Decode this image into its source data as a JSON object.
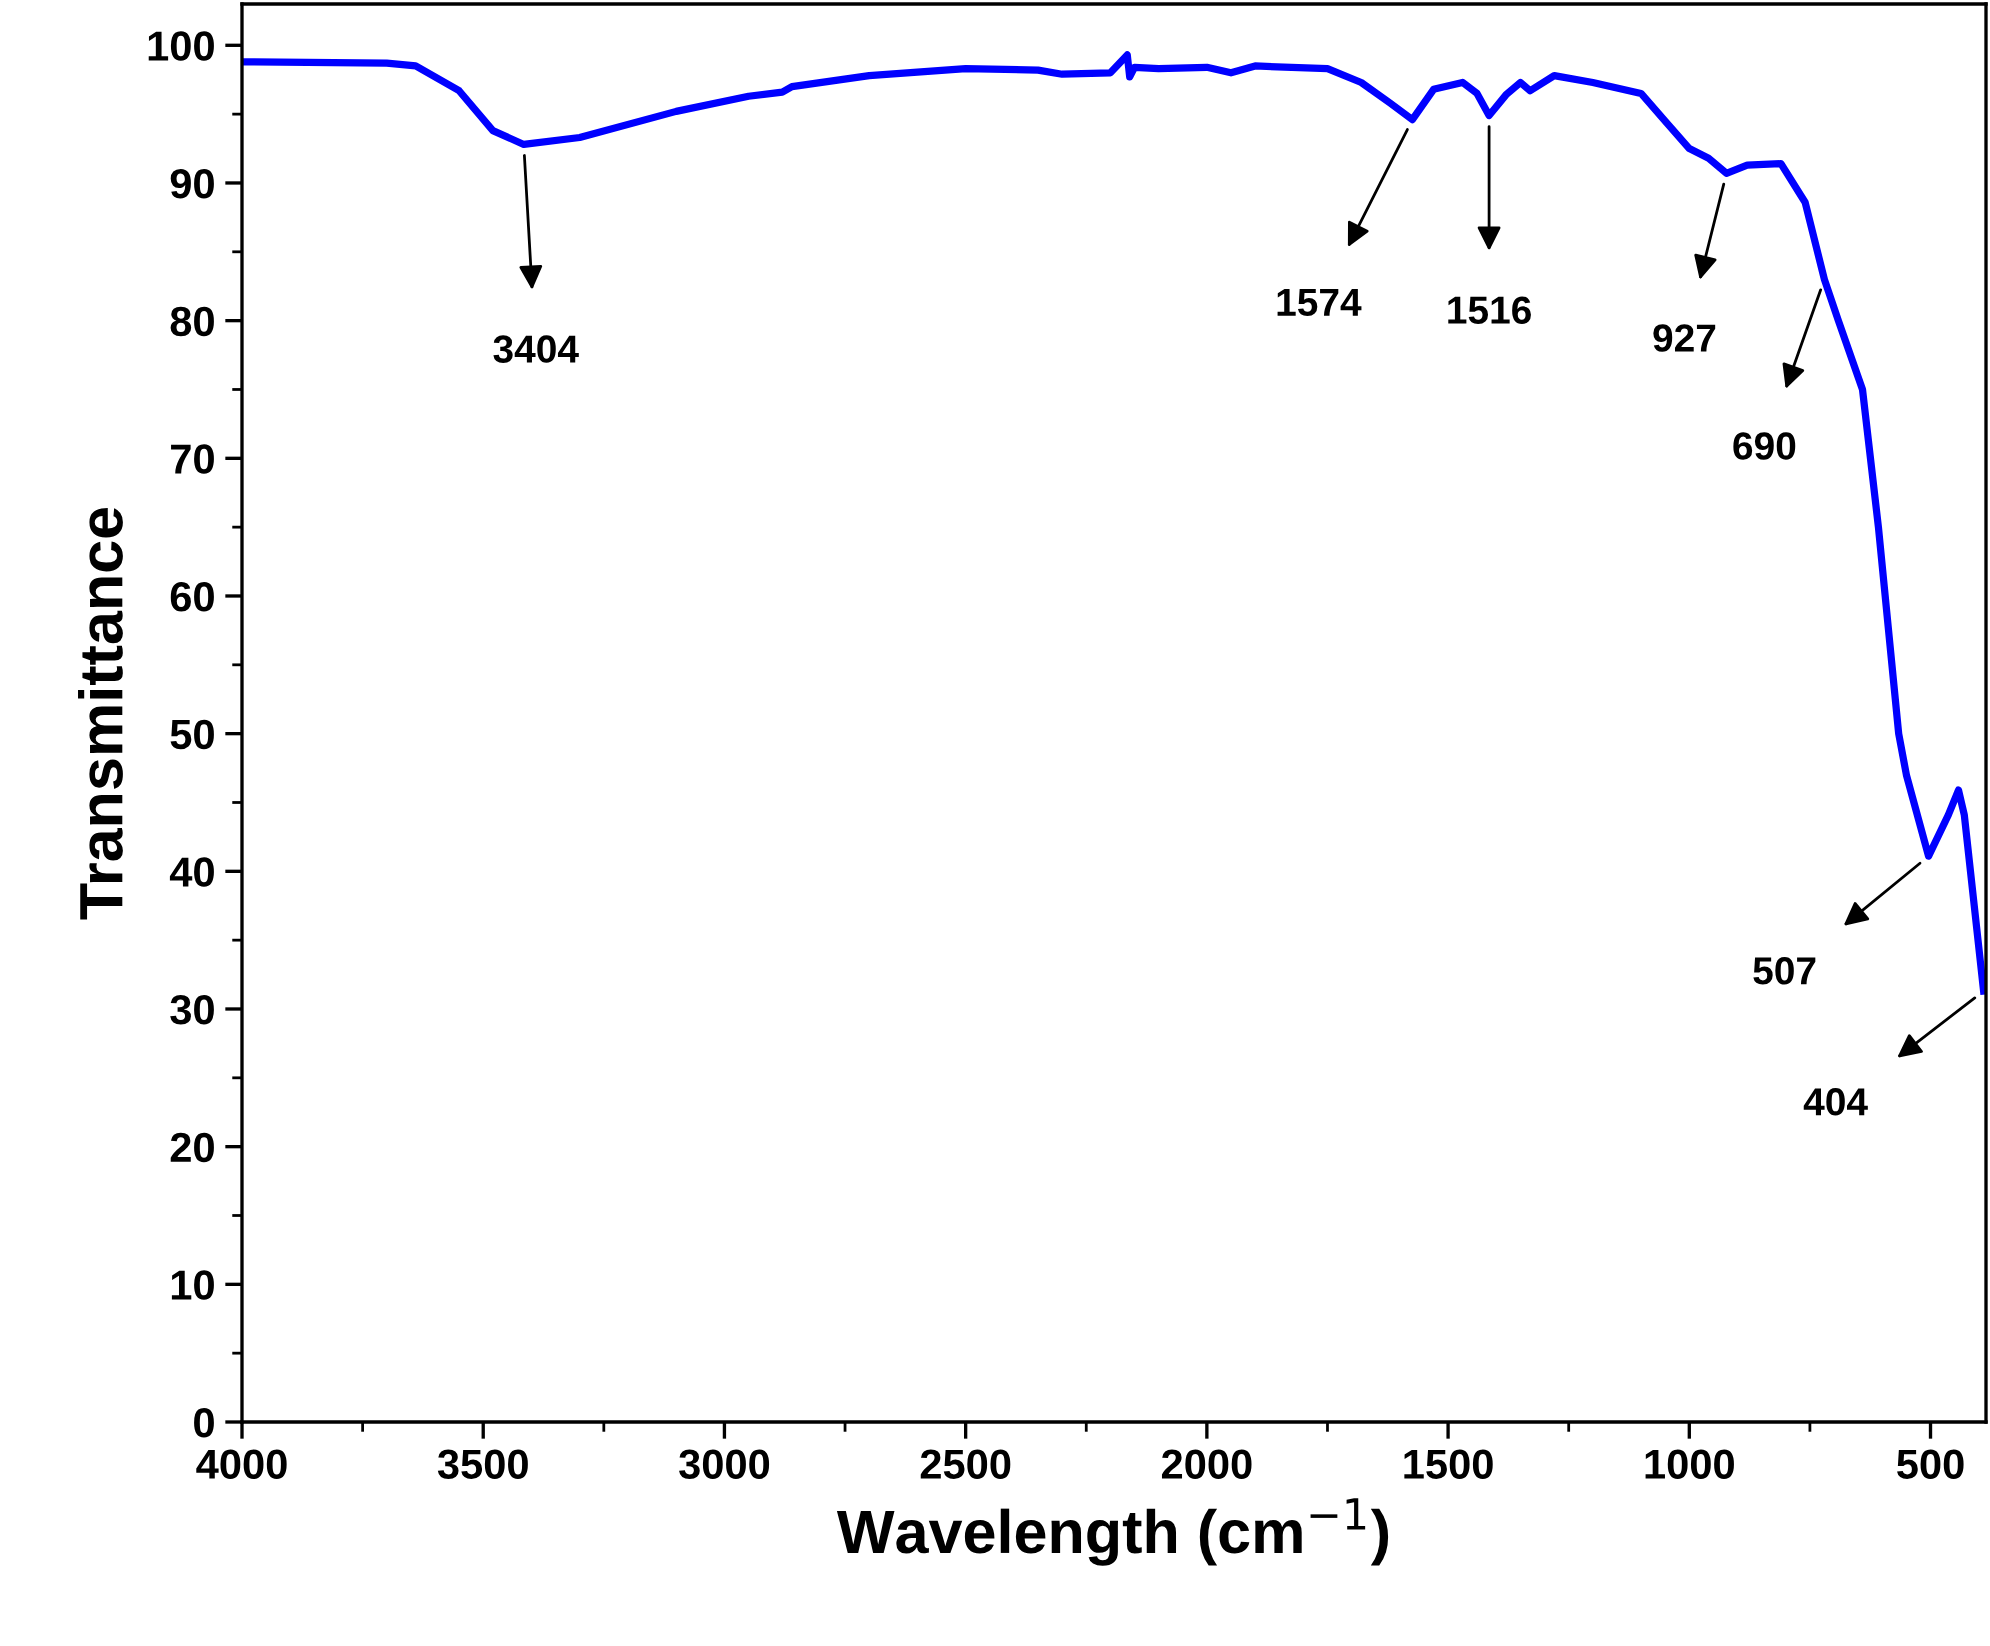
{
  "chart_data": {
    "type": "line",
    "xlabel": "Wavelength (cm$^{−1}$)",
    "ylabel": "Transmittance",
    "x": [
      4000,
      3700,
      3640,
      3550,
      3480,
      3416,
      3300,
      3100,
      2950,
      2880,
      2860,
      2700,
      2500,
      2350,
      2300,
      2200,
      2165,
      2160,
      2150,
      2100,
      2000,
      1950,
      1900,
      1750,
      1680,
      1620,
      1574,
      1530,
      1470,
      1440,
      1415,
      1380,
      1350,
      1330,
      1280,
      1200,
      1100,
      1050,
      1000,
      960,
      923,
      880,
      810,
      760,
      720,
      691,
      641,
      608,
      566,
      550,
      504,
      463,
      442,
      430,
      390
    ],
    "series": [
      {
        "color": "#0000ff",
        "values": [
          98.8,
          98.7,
          98.5,
          96.7,
          93.8,
          92.8,
          93.3,
          95.2,
          96.3,
          96.6,
          97.0,
          97.8,
          98.3,
          98.2,
          97.9,
          98.0,
          99.3,
          97.7,
          98.4,
          98.3,
          98.4,
          98.0,
          98.5,
          98.3,
          97.3,
          95.8,
          94.6,
          96.8,
          97.3,
          96.5,
          94.9,
          96.4,
          97.3,
          96.7,
          97.8,
          97.3,
          96.5,
          94.5,
          92.5,
          91.8,
          90.7,
          91.3,
          91.4,
          88.6,
          83.0,
          80,
          75,
          65,
          50,
          47,
          41.1,
          44.1,
          45.9,
          44.1,
          31.3
        ]
      }
    ],
    "xlim": [
      4000,
      385
    ],
    "xticks": [
      4000,
      3500,
      3000,
      2500,
      2000,
      1500,
      1000,
      500
    ],
    "ylim": [
      0,
      103
    ],
    "yticks": [
      0,
      10,
      20,
      30,
      40,
      50,
      60,
      70,
      80,
      90,
      100
    ],
    "grid": false,
    "legend": false,
    "annotations": [
      {
        "text": "3404",
        "x": 3416,
        "y": 92.8
      },
      {
        "text": "1574",
        "x": 1574,
        "y": 94.6
      },
      {
        "text": "1516",
        "x": 1415,
        "y": 94.9
      },
      {
        "text": "927",
        "x": 923,
        "y": 90.7
      },
      {
        "text": "690",
        "x": 720,
        "y": 83.0
      },
      {
        "text": "507",
        "x": 504,
        "y": 41.1
      },
      {
        "text": "404",
        "x": 390,
        "y": 31.3
      }
    ]
  }
}
